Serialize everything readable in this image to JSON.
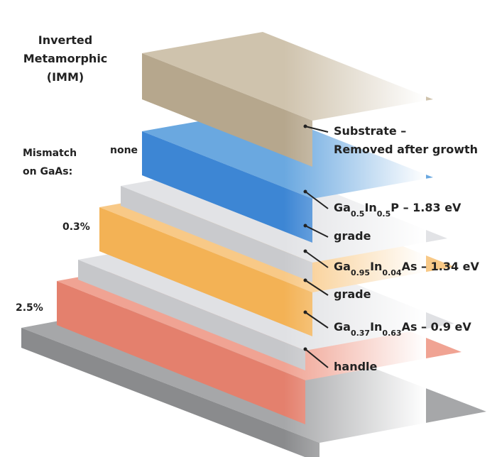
{
  "title": {
    "lines": [
      "Inverted",
      "Metamorphic",
      "(IMM)"
    ]
  },
  "mismatch": {
    "heading": [
      "Mismatch",
      "on GaAs:"
    ],
    "values": [
      "none",
      "0.3%",
      "2.5%"
    ]
  },
  "layers": [
    {
      "lines": [
        [
          {
            "text": "Substrate –"
          }
        ],
        [
          {
            "text": "Removed after growth"
          }
        ]
      ]
    },
    {
      "lines": [
        [
          {
            "text": "Ga"
          },
          {
            "text": "0.5",
            "subscript": true
          },
          {
            "text": "In"
          },
          {
            "text": "0.5",
            "subscript": true
          },
          {
            "text": "P – 1.83 eV"
          }
        ]
      ]
    },
    {
      "lines": [
        [
          {
            "text": "grade"
          }
        ]
      ]
    },
    {
      "lines": [
        [
          {
            "text": "Ga"
          },
          {
            "text": "0.95",
            "subscript": true
          },
          {
            "text": "In"
          },
          {
            "text": "0.04",
            "subscript": true
          },
          {
            "text": "As – 1.34 eV"
          }
        ]
      ]
    },
    {
      "lines": [
        [
          {
            "text": "grade"
          }
        ]
      ]
    },
    {
      "lines": [
        [
          {
            "text": "Ga"
          },
          {
            "text": "0.37",
            "subscript": true
          },
          {
            "text": "In"
          },
          {
            "text": "0.63",
            "subscript": true
          },
          {
            "text": "As – 0.9 eV"
          }
        ]
      ]
    },
    {
      "lines": [
        [
          {
            "text": "handle"
          }
        ]
      ]
    }
  ]
}
